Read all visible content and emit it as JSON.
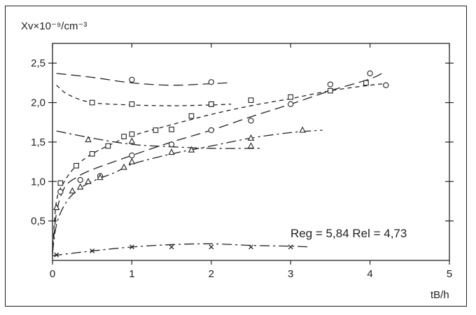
{
  "chart_data": {
    "type": "scatter",
    "title": "",
    "ylabel": "Xv×10⁻⁹/cm⁻³",
    "xlabel": "tB/h",
    "xlim": [
      0,
      5
    ],
    "ylim": [
      0,
      2.75
    ],
    "x_ticks": [
      "0",
      "1",
      "2",
      "3",
      "4",
      "5"
    ],
    "y_ticks": [
      "0,5",
      "1,0",
      "1,5",
      "2,0",
      "2,5"
    ],
    "annotation": "Reg = 5,84  Rel = 4,73",
    "series": [
      {
        "marker": "circle",
        "line": "long-dash",
        "points": [
          [
            0.1,
            0.87
          ],
          [
            0.35,
            1.02
          ],
          [
            0.6,
            1.07
          ],
          [
            1.0,
            1.33
          ],
          [
            1.5,
            1.47
          ],
          [
            2.0,
            1.65
          ],
          [
            2.5,
            1.77
          ],
          [
            3.0,
            1.98
          ],
          [
            3.5,
            2.23
          ],
          [
            4.0,
            2.37
          ],
          [
            4.2,
            2.22
          ]
        ],
        "curve": [
          [
            0.0,
            0.08
          ],
          [
            0.05,
            0.6
          ],
          [
            0.15,
            0.92
          ],
          [
            0.3,
            1.05
          ],
          [
            0.5,
            1.15
          ],
          [
            1.0,
            1.33
          ],
          [
            1.5,
            1.5
          ],
          [
            2.0,
            1.65
          ],
          [
            2.5,
            1.82
          ],
          [
            3.0,
            1.98
          ],
          [
            3.5,
            2.15
          ],
          [
            4.0,
            2.3
          ],
          [
            4.2,
            2.4
          ]
        ]
      },
      {
        "marker": "circle",
        "line": "long-dash",
        "points": [
          [
            1.0,
            2.29
          ],
          [
            2.0,
            2.26
          ]
        ],
        "curve": [
          [
            0.05,
            2.37
          ],
          [
            0.5,
            2.32
          ],
          [
            1.0,
            2.25
          ],
          [
            1.5,
            2.22
          ],
          [
            2.0,
            2.24
          ],
          [
            2.2,
            2.25
          ]
        ]
      },
      {
        "marker": "square",
        "line": "short-dash",
        "points": [
          [
            0.1,
            0.98
          ],
          [
            0.3,
            1.2
          ],
          [
            0.5,
            1.35
          ],
          [
            0.7,
            1.45
          ],
          [
            0.9,
            1.57
          ],
          [
            1.0,
            1.6
          ],
          [
            1.3,
            1.65
          ],
          [
            1.5,
            1.66
          ],
          [
            1.75,
            1.83
          ],
          [
            2.0,
            1.98
          ],
          [
            2.5,
            2.03
          ],
          [
            3.0,
            2.07
          ],
          [
            3.5,
            2.15
          ],
          [
            3.95,
            2.25
          ]
        ],
        "curve": [
          [
            0.0,
            0.1
          ],
          [
            0.05,
            0.75
          ],
          [
            0.15,
            1.0
          ],
          [
            0.3,
            1.2
          ],
          [
            0.5,
            1.35
          ],
          [
            0.8,
            1.5
          ],
          [
            1.0,
            1.58
          ],
          [
            1.5,
            1.72
          ],
          [
            2.0,
            1.85
          ],
          [
            2.5,
            1.96
          ],
          [
            3.0,
            2.05
          ],
          [
            3.5,
            2.15
          ],
          [
            4.0,
            2.22
          ],
          [
            4.2,
            2.24
          ]
        ]
      },
      {
        "marker": "square",
        "line": "short-dash",
        "points": [
          [
            0.5,
            2.0
          ],
          [
            1.0,
            1.98
          ],
          [
            2.0,
            1.98
          ]
        ],
        "curve": [
          [
            0.05,
            2.22
          ],
          [
            0.2,
            2.1
          ],
          [
            0.5,
            2.0
          ],
          [
            1.0,
            1.97
          ],
          [
            1.5,
            1.96
          ],
          [
            2.0,
            1.97
          ],
          [
            2.25,
            1.98
          ]
        ]
      },
      {
        "marker": "triangle",
        "line": "dash-dot",
        "points": [
          [
            0.05,
            0.67
          ],
          [
            0.25,
            0.88
          ],
          [
            0.35,
            0.93
          ],
          [
            0.45,
            1.0
          ],
          [
            0.6,
            1.05
          ],
          [
            0.9,
            1.18
          ],
          [
            1.0,
            1.25
          ],
          [
            1.5,
            1.37
          ],
          [
            1.75,
            1.4
          ],
          [
            2.5,
            1.55
          ],
          [
            3.15,
            1.65
          ]
        ],
        "curve": [
          [
            0.0,
            0.1
          ],
          [
            0.05,
            0.45
          ],
          [
            0.15,
            0.7
          ],
          [
            0.3,
            0.88
          ],
          [
            0.5,
            1.0
          ],
          [
            0.8,
            1.12
          ],
          [
            1.0,
            1.22
          ],
          [
            1.5,
            1.35
          ],
          [
            2.0,
            1.45
          ],
          [
            2.5,
            1.55
          ],
          [
            3.0,
            1.62
          ],
          [
            3.4,
            1.65
          ]
        ]
      },
      {
        "marker": "triangle",
        "line": "dash-dot",
        "points": [
          [
            0.45,
            1.53
          ],
          [
            1.0,
            1.51
          ],
          [
            2.5,
            1.45
          ]
        ],
        "curve": [
          [
            0.05,
            1.64
          ],
          [
            0.5,
            1.55
          ],
          [
            1.0,
            1.47
          ],
          [
            1.5,
            1.44
          ],
          [
            2.0,
            1.42
          ],
          [
            2.5,
            1.42
          ],
          [
            2.65,
            1.42
          ]
        ]
      },
      {
        "marker": "cross",
        "line": "dash-dot",
        "points": [
          [
            0.05,
            0.07
          ],
          [
            0.5,
            0.12
          ],
          [
            1.0,
            0.17
          ],
          [
            1.5,
            0.17
          ],
          [
            2.0,
            0.17
          ],
          [
            2.5,
            0.17
          ],
          [
            3.0,
            0.17
          ]
        ],
        "curve": [
          [
            0.0,
            0.06
          ],
          [
            0.5,
            0.12
          ],
          [
            1.0,
            0.17
          ],
          [
            1.5,
            0.2
          ],
          [
            2.0,
            0.21
          ],
          [
            2.5,
            0.19
          ],
          [
            3.0,
            0.18
          ],
          [
            3.25,
            0.17
          ]
        ]
      }
    ],
    "grid": false,
    "colors": {
      "ink": "#222222",
      "background": "#ffffff"
    }
  }
}
